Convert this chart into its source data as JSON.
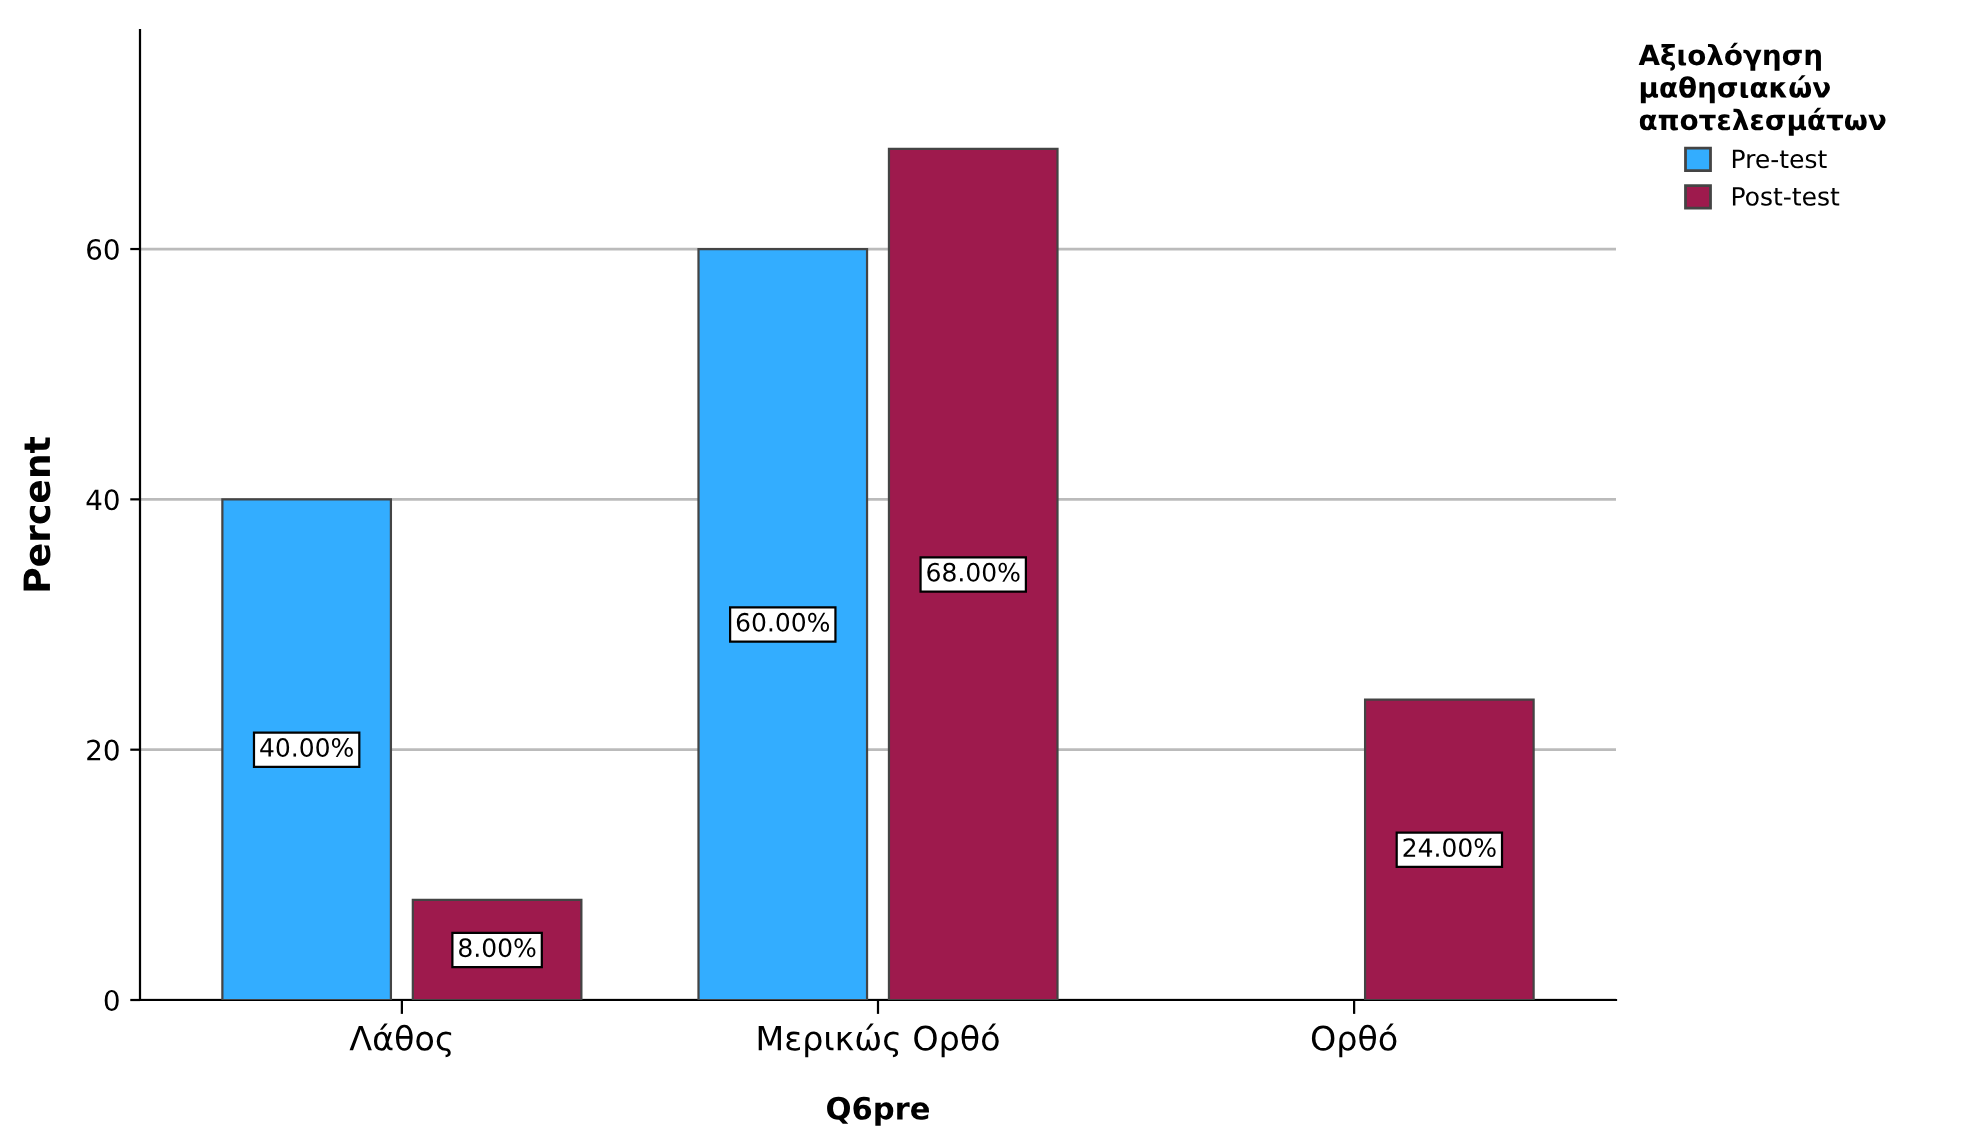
{
  "chart_data": {
    "type": "bar",
    "xlabel": "Q6pre",
    "ylabel": "Percent",
    "legend_title": "Αξιολόγηση\nμαθησιακών\nαποτελεσμάτων",
    "categories": [
      "Λάθος",
      "Μερικώς Ορθό",
      "Ορθό"
    ],
    "series": [
      {
        "name": "Pre-test",
        "color": "#33adff",
        "values": [
          40,
          60,
          null
        ],
        "value_labels": [
          "40.00%",
          "60.00%",
          null
        ]
      },
      {
        "name": "Post-test",
        "color": "#9e1a4d",
        "values": [
          8,
          68,
          24
        ],
        "value_labels": [
          "8.00%",
          "68.00%",
          "24.00%"
        ]
      }
    ],
    "ylim": [
      0,
      77.5
    ],
    "yticks": [
      0,
      20,
      40,
      60
    ],
    "grid": "y",
    "legend": "top right"
  }
}
